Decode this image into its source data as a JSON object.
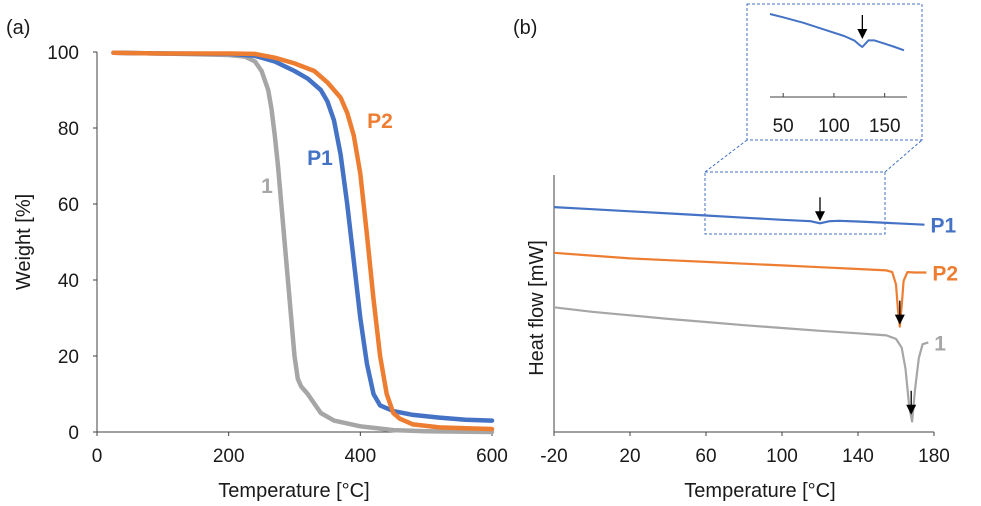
{
  "chart_data": [
    {
      "panel": "(a)",
      "type": "line",
      "xlabel": "Temperature [°C]",
      "ylabel": "Weight [%]",
      "xlim": [
        0,
        600
      ],
      "ylim": [
        0,
        100
      ],
      "x_ticks": [
        "0",
        "200",
        "400",
        "600"
      ],
      "y_ticks": [
        "0",
        "20",
        "40",
        "60",
        "80",
        "100"
      ],
      "series": [
        {
          "name": "1",
          "color": "#a6a6a6",
          "points": [
            [
              25,
              99.8
            ],
            [
              100,
              99.6
            ],
            [
              150,
              99.4
            ],
            [
              200,
              99.2
            ],
            [
              225,
              98.8
            ],
            [
              240,
              97.5
            ],
            [
              250,
              95
            ],
            [
              260,
              90
            ],
            [
              265,
              85
            ],
            [
              270,
              78
            ],
            [
              275,
              70
            ],
            [
              280,
              60
            ],
            [
              285,
              50
            ],
            [
              290,
              40
            ],
            [
              295,
              30
            ],
            [
              300,
              20
            ],
            [
              305,
              14
            ],
            [
              310,
              12
            ],
            [
              320,
              10
            ],
            [
              340,
              5
            ],
            [
              360,
              3
            ],
            [
              400,
              1.5
            ],
            [
              450,
              0.5
            ],
            [
              500,
              0.2
            ],
            [
              600,
              0
            ]
          ]
        },
        {
          "name": "P1",
          "color": "#4472c4",
          "points": [
            [
              25,
              99.8
            ],
            [
              100,
              99.6
            ],
            [
              200,
              99.5
            ],
            [
              240,
              99
            ],
            [
              270,
              97.5
            ],
            [
              300,
              95
            ],
            [
              320,
              93
            ],
            [
              340,
              90
            ],
            [
              350,
              87
            ],
            [
              360,
              82
            ],
            [
              370,
              73
            ],
            [
              380,
              60
            ],
            [
              390,
              45
            ],
            [
              400,
              30
            ],
            [
              410,
              18
            ],
            [
              420,
              10
            ],
            [
              430,
              7
            ],
            [
              450,
              5.5
            ],
            [
              480,
              4.5
            ],
            [
              520,
              3.8
            ],
            [
              560,
              3.2
            ],
            [
              600,
              3
            ]
          ]
        },
        {
          "name": "P2",
          "color": "#ed7d31",
          "points": [
            [
              25,
              99.8
            ],
            [
              100,
              99.6
            ],
            [
              200,
              99.6
            ],
            [
              240,
              99.5
            ],
            [
              270,
              98.5
            ],
            [
              300,
              97
            ],
            [
              330,
              95
            ],
            [
              350,
              92
            ],
            [
              370,
              88
            ],
            [
              380,
              84
            ],
            [
              390,
              78
            ],
            [
              400,
              68
            ],
            [
              410,
              52
            ],
            [
              420,
              35
            ],
            [
              430,
              20
            ],
            [
              440,
              10
            ],
            [
              450,
              5
            ],
            [
              460,
              3.5
            ],
            [
              480,
              2
            ],
            [
              520,
              1.2
            ],
            [
              560,
              1
            ],
            [
              600,
              0.8
            ]
          ]
        }
      ]
    },
    {
      "panel": "(b)",
      "type": "line",
      "xlabel": "Temperature [°C]",
      "ylabel": "Heat flow [mW]",
      "xlim": [
        -20,
        180
      ],
      "x_ticks": [
        "-20",
        "20",
        "60",
        "100",
        "140",
        "180"
      ],
      "series": [
        {
          "name": "P1",
          "color": "#4472c4",
          "arrow_x": 120,
          "points": [
            [
              -20,
              64
            ],
            [
              0,
              63.4
            ],
            [
              20,
              62.8
            ],
            [
              40,
              62.2
            ],
            [
              60,
              61.6
            ],
            [
              80,
              61
            ],
            [
              100,
              60.4
            ],
            [
              115,
              60
            ],
            [
              120,
              59.4
            ],
            [
              125,
              60
            ],
            [
              130,
              60.1
            ],
            [
              140,
              59.9
            ],
            [
              160,
              59.4
            ],
            [
              175,
              59
            ]
          ]
        },
        {
          "name": "P2",
          "color": "#ed7d31",
          "arrow_x": 162,
          "points": [
            [
              -20,
              51
            ],
            [
              0,
              50.2
            ],
            [
              20,
              49.4
            ],
            [
              40,
              48.9
            ],
            [
              60,
              48.4
            ],
            [
              80,
              47.9
            ],
            [
              100,
              47.4
            ],
            [
              120,
              46.9
            ],
            [
              140,
              46.4
            ],
            [
              155,
              46
            ],
            [
              158,
              45.5
            ],
            [
              160,
              42
            ],
            [
              161,
              35
            ],
            [
              162,
              30
            ],
            [
              163,
              36
            ],
            [
              164,
              43
            ],
            [
              166,
              45.5
            ],
            [
              170,
              45.4
            ],
            [
              176,
              45.4
            ]
          ]
        },
        {
          "name": "1",
          "color": "#a6a6a6",
          "arrow_x": 168,
          "points": [
            [
              -20,
              35.5
            ],
            [
              0,
              34.2
            ],
            [
              20,
              33.2
            ],
            [
              40,
              32.2
            ],
            [
              60,
              31.3
            ],
            [
              80,
              30.4
            ],
            [
              100,
              29.6
            ],
            [
              120,
              28.8
            ],
            [
              140,
              28.1
            ],
            [
              155,
              27.5
            ],
            [
              160,
              26.5
            ],
            [
              163,
              24
            ],
            [
              165,
              18
            ],
            [
              167,
              7
            ],
            [
              168.5,
              3
            ],
            [
              170,
              12
            ],
            [
              172,
              21
            ],
            [
              174,
              25
            ],
            [
              177,
              25.5
            ]
          ]
        }
      ],
      "inset": {
        "x_ticks": [
          "50",
          "100",
          "150"
        ],
        "xlim": [
          37,
          172
        ],
        "arrow_x": 128,
        "color": "#4472c4",
        "points": [
          [
            37,
            94
          ],
          [
            50,
            91
          ],
          [
            70,
            86
          ],
          [
            90,
            80
          ],
          [
            110,
            74
          ],
          [
            120,
            70
          ],
          [
            125,
            66
          ],
          [
            128,
            64
          ],
          [
            131,
            67
          ],
          [
            134,
            70
          ],
          [
            140,
            70
          ],
          [
            150,
            67
          ],
          [
            160,
            64
          ],
          [
            169,
            61
          ]
        ]
      }
    }
  ],
  "panels": {
    "a": {
      "label": "(a)"
    },
    "b": {
      "label": "(b)"
    }
  }
}
